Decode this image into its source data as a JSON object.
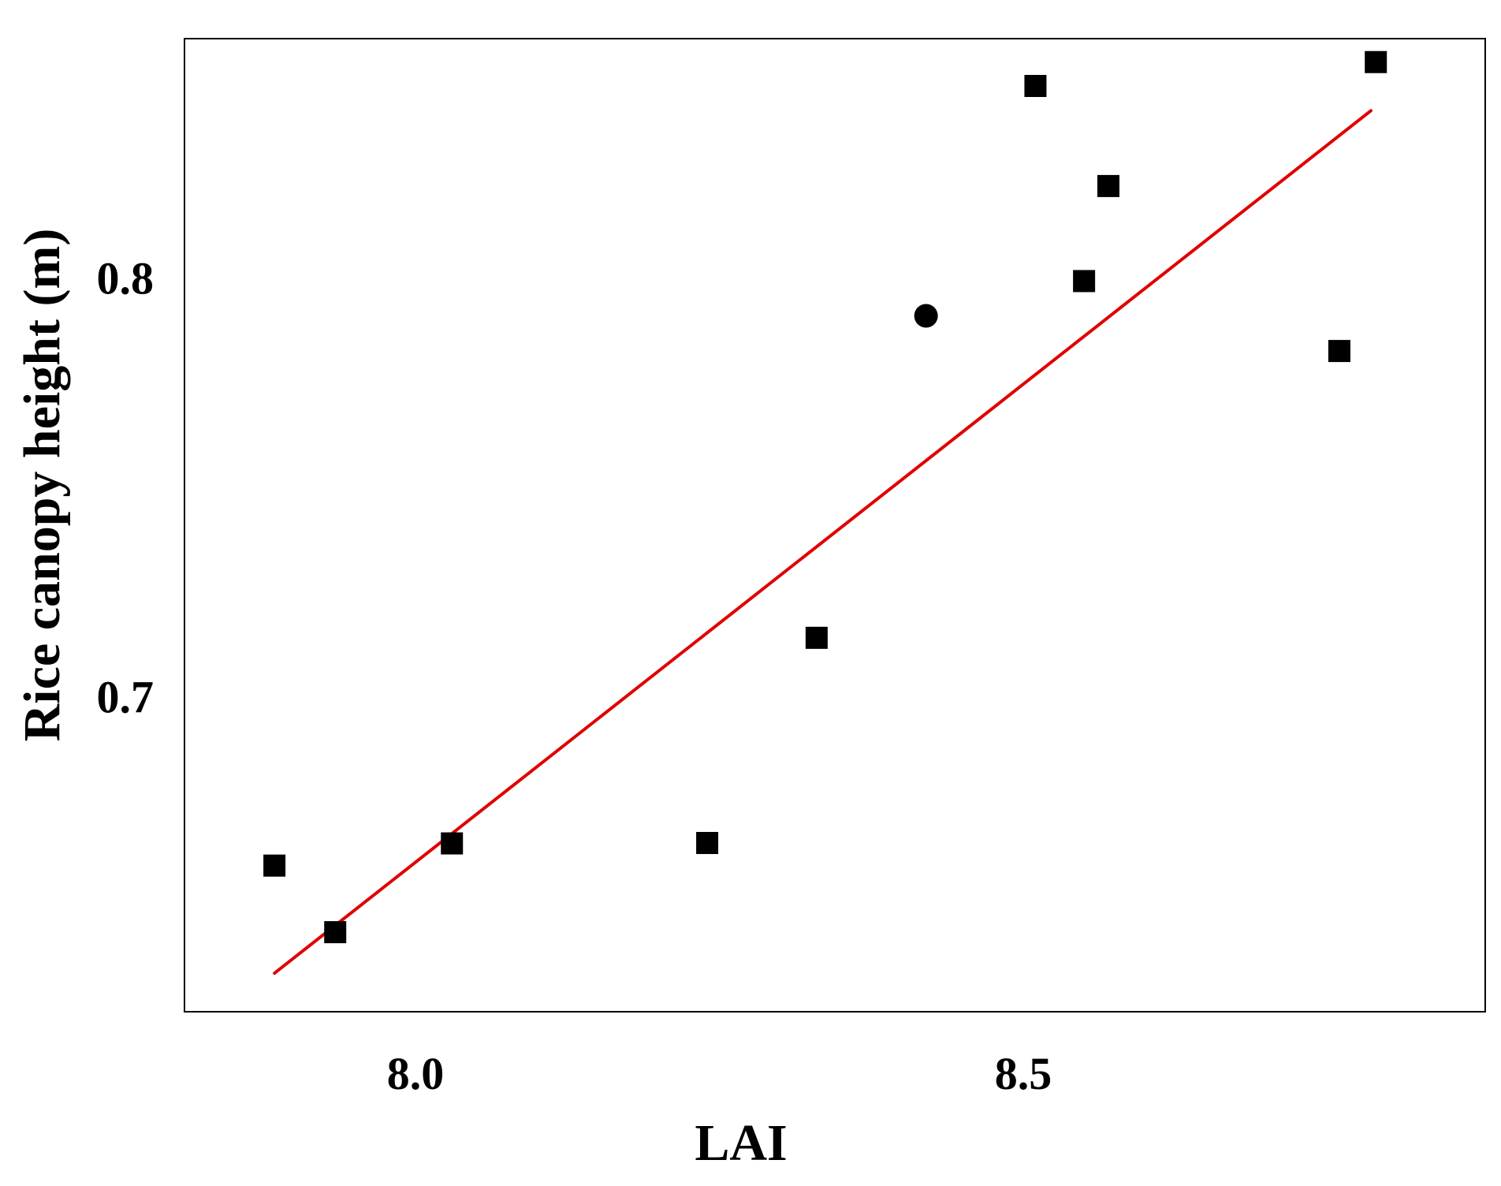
{
  "chart_data": {
    "type": "scatter",
    "title": "",
    "xlabel": "LAI",
    "ylabel": "Rice canopy height (m)",
    "xlim": [
      7.81,
      8.88
    ],
    "ylim": [
      0.6248,
      0.8572
    ],
    "xticks": [
      8.0,
      8.5
    ],
    "xtick_labels": [
      "8.0",
      "8.5"
    ],
    "yticks": [
      0.7,
      0.8
    ],
    "ytick_labels": [
      "0.7",
      "0.8"
    ],
    "grid": false,
    "legend": "none",
    "series": [
      {
        "marker": "square",
        "color": "#000000",
        "x": [
          7.884,
          7.934,
          8.03,
          8.24,
          8.33,
          8.51,
          8.55,
          8.57,
          8.76,
          8.79
        ],
        "y": [
          0.6597,
          0.6438,
          0.665,
          0.6651,
          0.7141,
          0.8459,
          0.7993,
          0.822,
          0.7826,
          0.8516
        ]
      },
      {
        "marker": "circle",
        "color": "#000000",
        "x": [
          8.42
        ],
        "y": [
          0.791
        ]
      }
    ],
    "fit_line": {
      "color": "#e00000",
      "x": [
        7.884,
        8.786
      ],
      "y": [
        0.634,
        0.84
      ]
    }
  }
}
